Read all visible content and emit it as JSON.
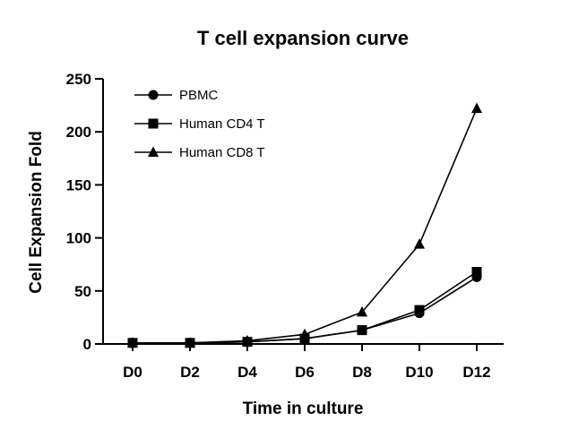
{
  "chart_data": {
    "type": "line",
    "title": "T cell expansion curve",
    "xlabel": "Time in culture",
    "ylabel": "Cell Expansion Fold",
    "categories": [
      "D0",
      "D2",
      "D4",
      "D6",
      "D8",
      "D10",
      "D12"
    ],
    "yticks": [
      "0",
      "50",
      "100",
      "150",
      "200",
      "250"
    ],
    "ylim": [
      0,
      250
    ],
    "grid": false,
    "legend_position": "top-left",
    "series": [
      {
        "name": "PBMC",
        "marker": "circle",
        "values": [
          1,
          1,
          2,
          5,
          13,
          29,
          63
        ]
      },
      {
        "name": "Human CD4 T",
        "marker": "square",
        "values": [
          1,
          1,
          2,
          5,
          13,
          32,
          68
        ]
      },
      {
        "name": "Human CD8 T",
        "marker": "triangle",
        "values": [
          1,
          1,
          3,
          9,
          30,
          94,
          222
        ]
      }
    ],
    "colors": {
      "line": "#000000",
      "marker": "#000000"
    }
  }
}
